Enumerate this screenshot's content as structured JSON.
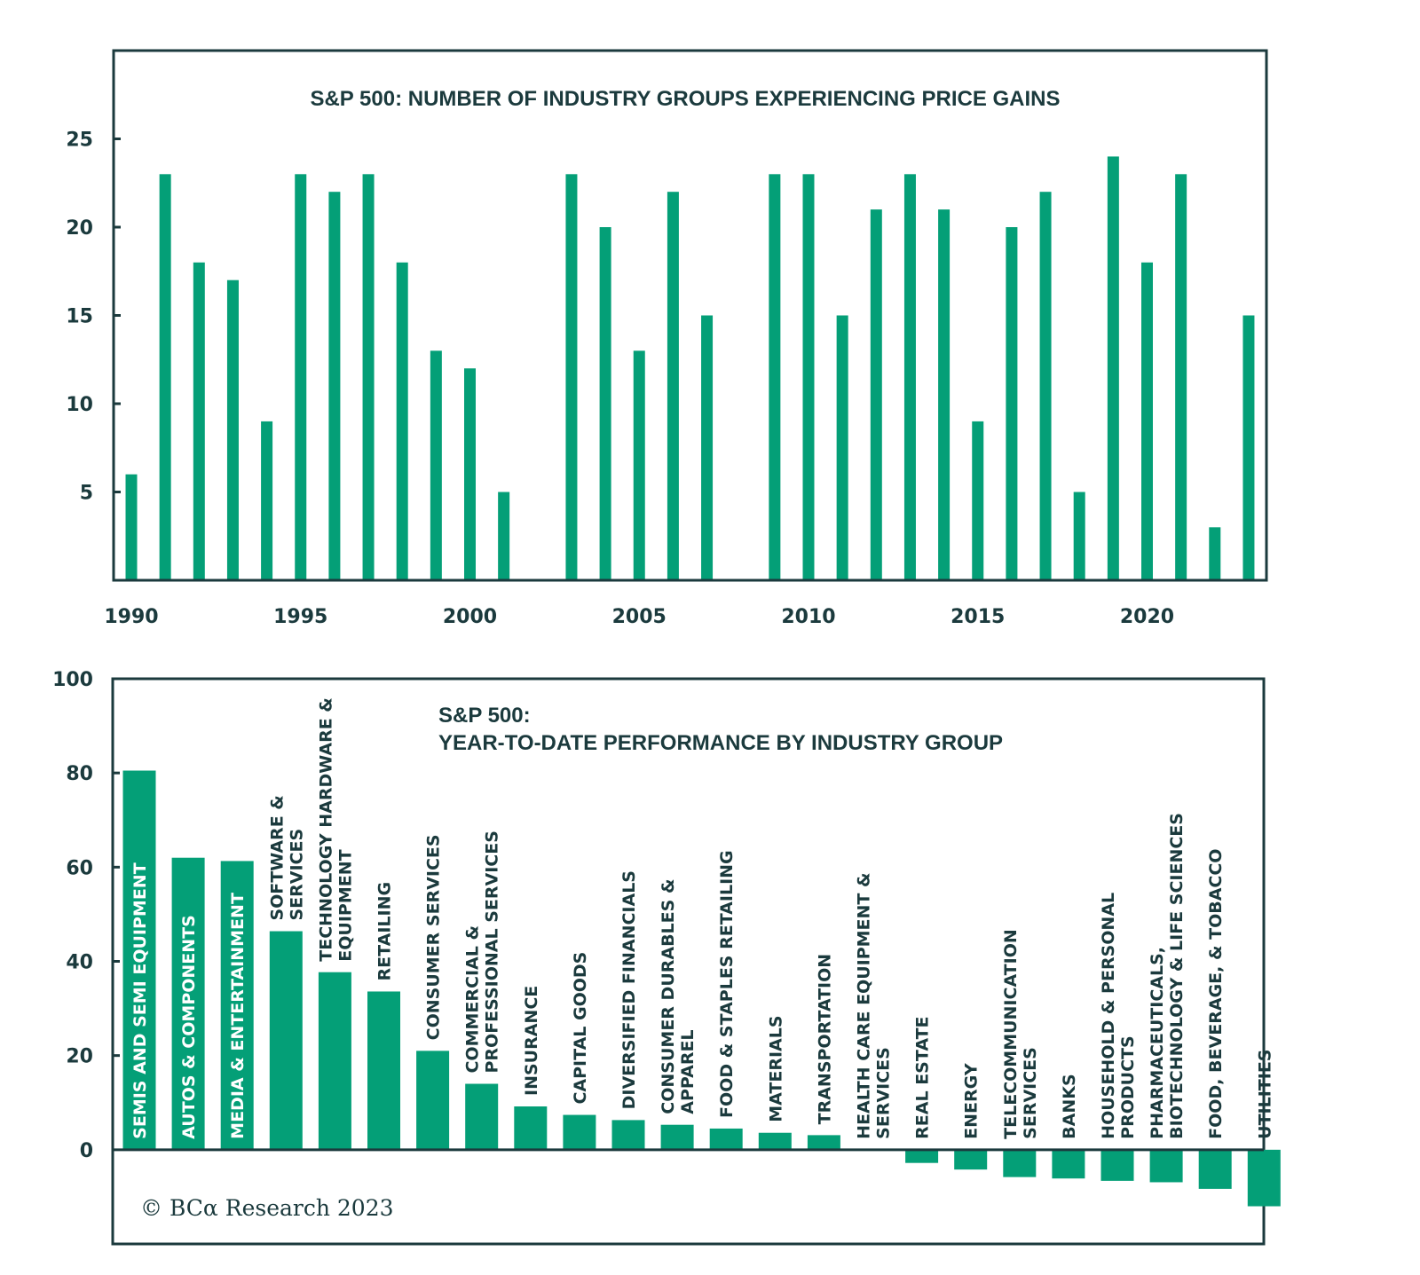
{
  "colors": {
    "bar": "#049f77",
    "axis": "#1b3a3d",
    "text": "#1b3a3d",
    "inside_text": "#ffffff"
  },
  "chart_data": [
    {
      "type": "bar",
      "title": "S&P 500: NUMBER OF INDUSTRY GROUPS EXPERIENCING PRICE GAINS",
      "xlabel": "",
      "ylabel": "",
      "ylim": [
        0,
        30
      ],
      "yticks": [
        "5",
        "10",
        "15",
        "20",
        "25"
      ],
      "ytick_values": [
        5,
        10,
        15,
        20,
        25
      ],
      "xticks": [
        "1990",
        "1995",
        "2000",
        "2005",
        "2010",
        "2015",
        "2020"
      ],
      "xtick_values": [
        1990,
        1995,
        2000,
        2005,
        2010,
        2015,
        2020
      ],
      "grid": false,
      "x": [
        1990,
        1991,
        1992,
        1993,
        1994,
        1995,
        1996,
        1997,
        1998,
        1999,
        2000,
        2001,
        2002,
        2003,
        2004,
        2005,
        2006,
        2007,
        2008,
        2009,
        2010,
        2011,
        2012,
        2013,
        2014,
        2015,
        2016,
        2017,
        2018,
        2019,
        2020,
        2021,
        2022,
        2023
      ],
      "values": [
        6,
        23,
        18,
        17,
        9,
        23,
        22,
        23,
        18,
        13,
        12,
        5,
        0,
        23,
        20,
        13,
        22,
        15,
        0,
        23,
        23,
        15,
        21,
        23,
        21,
        9,
        20,
        22,
        5,
        24,
        18,
        23,
        3,
        15
      ]
    },
    {
      "type": "bar",
      "title": "S&P 500:",
      "subtitle": "YEAR-TO-DATE PERFORMANCE BY INDUSTRY GROUP",
      "xlabel": "",
      "ylabel": "",
      "ylim": [
        -20,
        100
      ],
      "yticks": [
        "0",
        "20",
        "40",
        "60",
        "80",
        "100"
      ],
      "ytick_values": [
        0,
        20,
        40,
        60,
        80,
        100
      ],
      "grid": false,
      "categories": [
        [
          "SEMIS AND SEMI EQUIPMENT"
        ],
        [
          "AUTOS & COMPONENTS"
        ],
        [
          "MEDIA & ENTERTAINMENT"
        ],
        [
          "SOFTWARE &",
          "SERVICES"
        ],
        [
          "TECHNOLOGY HARDWARE &",
          "EQUIPMENT"
        ],
        [
          "RETAILING"
        ],
        [
          "CONSUMER SERVICES"
        ],
        [
          "COMMERCIAL &",
          "PROFESSIONAL SERVICES"
        ],
        [
          "INSURANCE"
        ],
        [
          "CAPITAL GOODS"
        ],
        [
          "DIVERSIFIED FINANCIALS"
        ],
        [
          "CONSUMER DURABLES &",
          "APPAREL"
        ],
        [
          "FOOD & STAPLES RETAILING"
        ],
        [
          "MATERIALS"
        ],
        [
          "TRANSPORTATION"
        ],
        [
          "HEALTH CARE EQUIPMENT &",
          "SERVICES"
        ],
        [
          "REAL ESTATE"
        ],
        [
          "ENERGY"
        ],
        [
          "TELECOMMUNICATION",
          "SERVICES"
        ],
        [
          "BANKS"
        ],
        [
          "HOUSEHOLD & PERSONAL",
          "PRODUCTS"
        ],
        [
          "PHARMACEUTICALS,",
          "BIOTECHNOLOGY & LIFE SCIENCES"
        ],
        [
          "FOOD, BEVERAGE, & TOBACCO"
        ],
        [
          "UTILITIES"
        ]
      ],
      "values": [
        80.5,
        62,
        61.3,
        46.4,
        37.7,
        33.6,
        21,
        14,
        9.2,
        7.4,
        6.3,
        5.3,
        4.5,
        3.6,
        3.1,
        0,
        -2.8,
        -4.2,
        -5.8,
        -6.1,
        -6.6,
        -6.9,
        -8.3,
        -12
      ],
      "label_inside": [
        true,
        true,
        true,
        false,
        false,
        false,
        false,
        false,
        false,
        false,
        false,
        false,
        false,
        false,
        false,
        false,
        false,
        false,
        false,
        false,
        false,
        false,
        false,
        false
      ]
    }
  ],
  "footer": {
    "copyright": "© BCα Research 2023"
  }
}
